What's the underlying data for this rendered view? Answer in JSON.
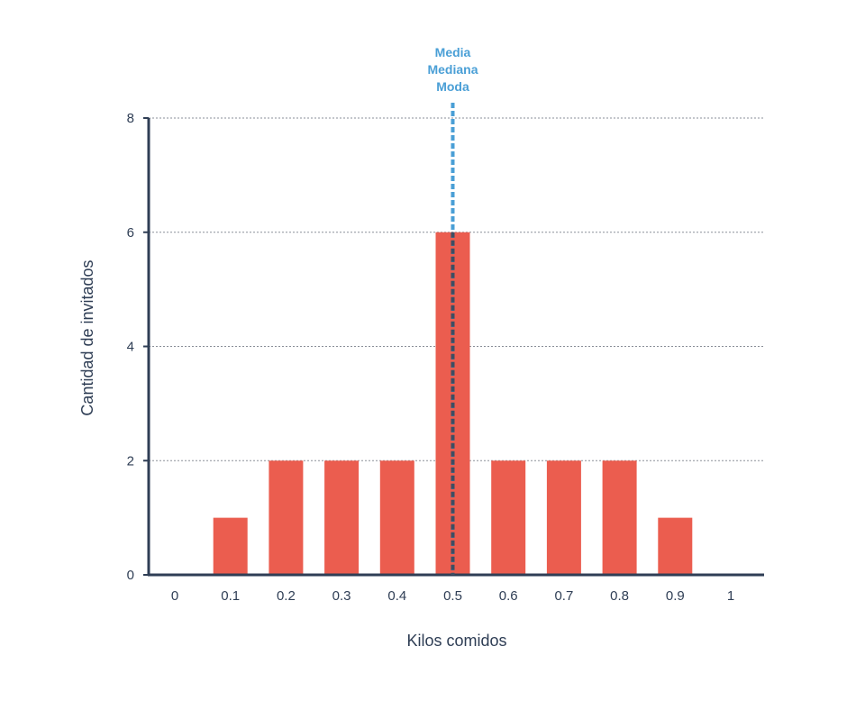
{
  "chart_data": {
    "type": "bar",
    "title": "",
    "xlabel": "Kilos comidos",
    "ylabel": "Cantidad de invitados",
    "categories": [
      "0",
      "0.1",
      "0.2",
      "0.3",
      "0.4",
      "0.5",
      "0.6",
      "0.7",
      "0.8",
      "0.9",
      "1"
    ],
    "values": [
      0,
      1,
      2,
      2,
      2,
      6,
      2,
      2,
      2,
      1,
      0
    ],
    "ylim": [
      0,
      8
    ],
    "yticks": [
      "0",
      "2",
      "4",
      "6",
      "8"
    ],
    "grid": true,
    "bar_color": "#eb5d4f",
    "axis_color": "#2f3e55",
    "annotation": {
      "x": "0.5",
      "lines": [
        "Media",
        "Mediana",
        "Moda"
      ],
      "color": "#4a9fd6"
    }
  }
}
